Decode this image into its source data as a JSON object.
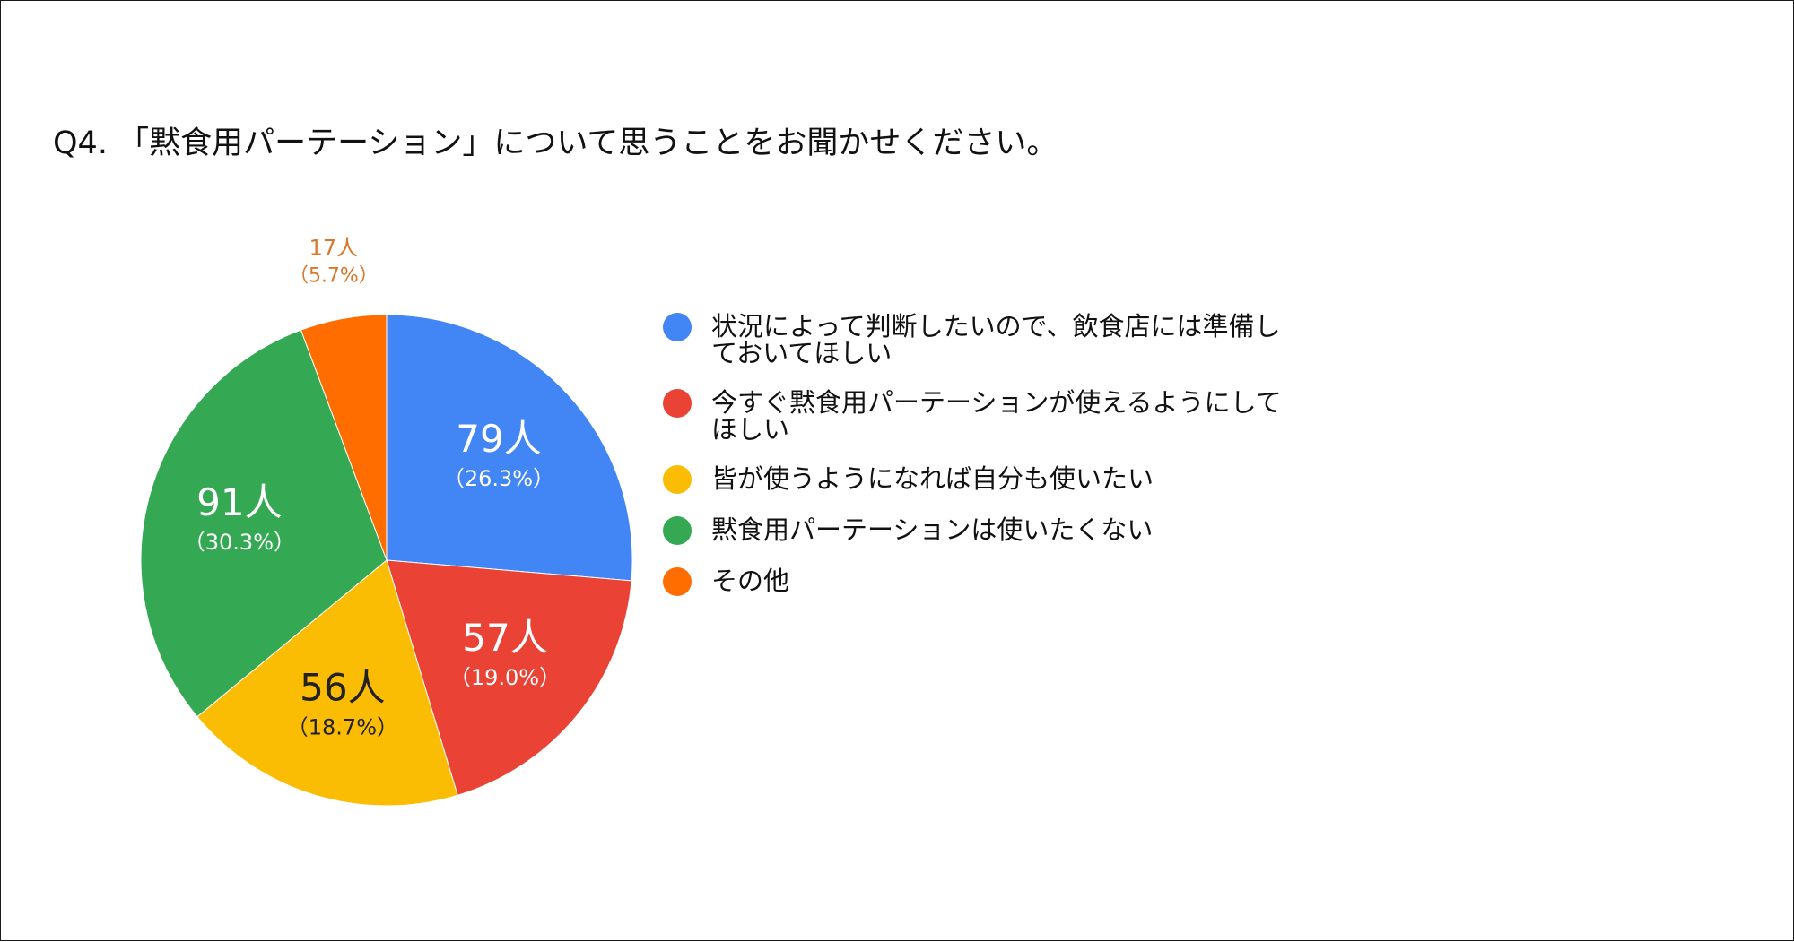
{
  "chart_data": {
    "type": "pie",
    "title": "Q4. 「黙食用パーテーション」について思うことをお聞かせください。",
    "legend_position": "right",
    "slices": [
      {
        "label": "状況によって判断したいので、飲食店には準備しておいてほしい",
        "value": 79,
        "value_label": "79人",
        "percent_label": "（26.3%）",
        "color": "#4285F4"
      },
      {
        "label": "今すぐ黙食用パーテーションが使えるようにしてほしい",
        "value": 57,
        "value_label": "57人",
        "percent_label": "（19.0%）",
        "color": "#EA4335"
      },
      {
        "label": "皆が使うようになれば自分も使いたい",
        "value": 56,
        "value_label": "56人",
        "percent_label": "（18.7%）",
        "color": "#FBBC04"
      },
      {
        "label": "黙食用パーテーションは使いたくない",
        "value": 91,
        "value_label": "91人",
        "percent_label": "（30.3%）",
        "color": "#34A853"
      },
      {
        "label": "その他",
        "value": 17,
        "value_label": "17人",
        "percent_label": "（5.7%）",
        "color": "#FF6D01"
      }
    ]
  },
  "colors": {
    "label_on_slice": "#ffffff",
    "label_on_yellow": "#222222",
    "label_outside": "#D9772A"
  }
}
